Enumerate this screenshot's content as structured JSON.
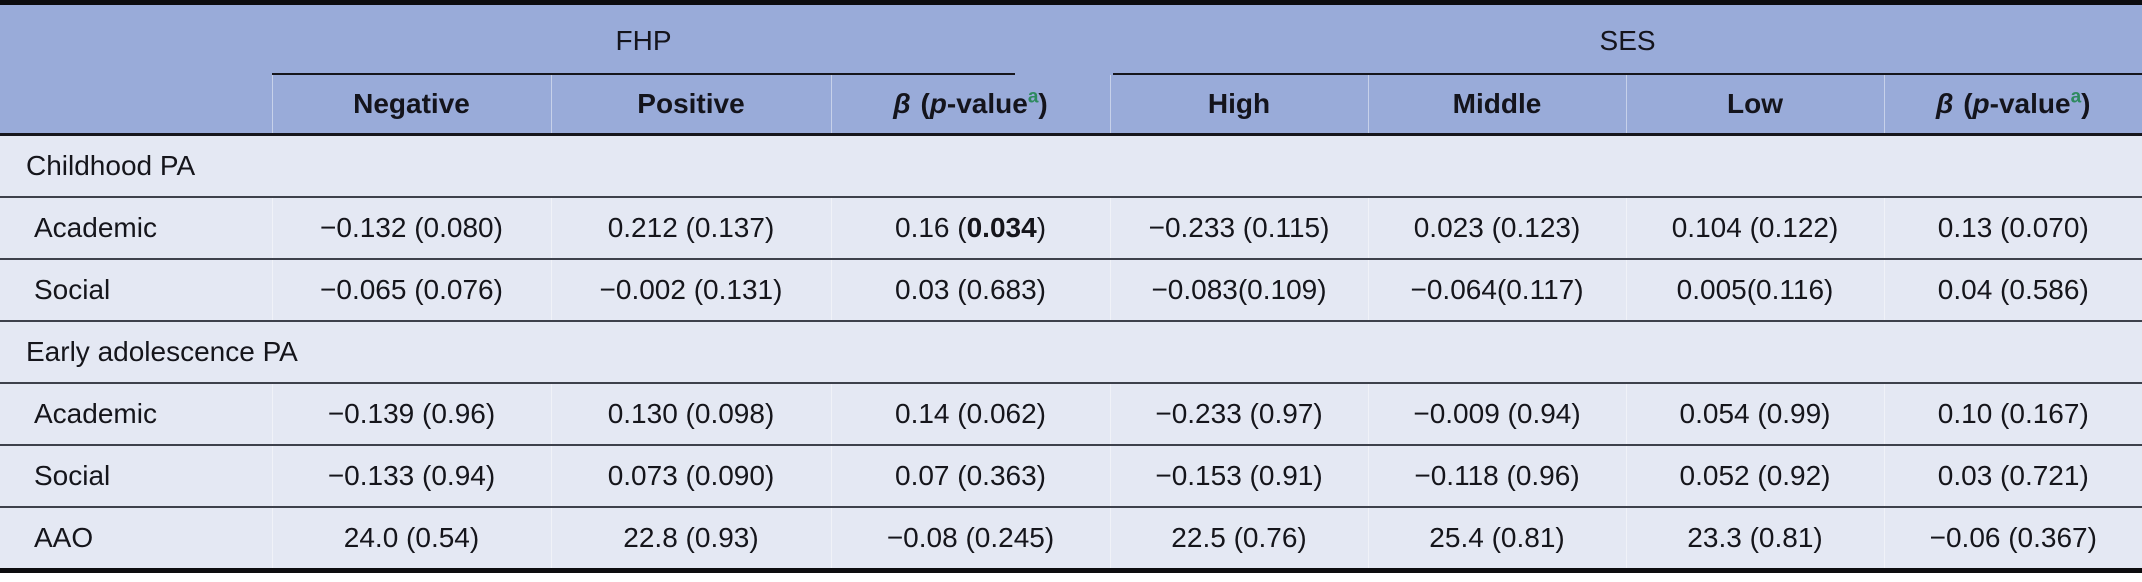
{
  "colors": {
    "header_bg": "#99abd9",
    "body_bg": "#e4e8f3",
    "footnote_marker_green": "#2e8a5f",
    "rule_dark": "#0c0c0f",
    "row_line": "#3d414b",
    "text": "#15151b"
  },
  "table": {
    "groups": [
      {
        "label": "FHP",
        "span": 3
      },
      {
        "label": "SES",
        "span": 4
      }
    ],
    "columns": [
      {
        "kind": "plain",
        "label": "Negative"
      },
      {
        "kind": "plain",
        "label": "Positive"
      },
      {
        "kind": "beta",
        "beta": "β",
        "open": " (",
        "p": "p",
        "rest": "-value",
        "sup": "a",
        "close": ")"
      },
      {
        "kind": "plain",
        "label": "High"
      },
      {
        "kind": "plain",
        "label": "Middle"
      },
      {
        "kind": "plain",
        "label": "Low"
      },
      {
        "kind": "beta",
        "beta": "β",
        "open": " (",
        "p": "p",
        "rest": "-value",
        "sup": "a",
        "close": ")"
      }
    ],
    "rows": [
      {
        "type": "section",
        "label": "Childhood PA"
      },
      {
        "type": "data",
        "label": "Academic",
        "cells": [
          "−0.132 (0.080)",
          "0.212 (0.137)",
          {
            "pre": "0.16 (",
            "bold": "0.034",
            "post": ")"
          },
          "−0.233 (0.115)",
          "0.023 (0.123)",
          "0.104 (0.122)",
          "0.13 (0.070)"
        ]
      },
      {
        "type": "data",
        "label": "Social",
        "cells": [
          "−0.065 (0.076)",
          "−0.002 (0.131)",
          "0.03 (0.683)",
          "−0.083(0.109)",
          "−0.064(0.117)",
          "0.005(0.116)",
          "0.04 (0.586)"
        ]
      },
      {
        "type": "section",
        "label": "Early adolescence PA"
      },
      {
        "type": "data",
        "label": "Academic",
        "cells": [
          "−0.139 (0.96)",
          "0.130 (0.098)",
          "0.14 (0.062)",
          "−0.233 (0.97)",
          "−0.009 (0.94)",
          "0.054 (0.99)",
          "0.10 (0.167)"
        ]
      },
      {
        "type": "data",
        "label": "Social",
        "cells": [
          "−0.133 (0.94)",
          "0.073 (0.090)",
          "0.07 (0.363)",
          "−0.153 (0.91)",
          "−0.118 (0.96)",
          "0.052 (0.92)",
          "0.03 (0.721)"
        ]
      },
      {
        "type": "data",
        "label": "AAO",
        "cells": [
          "24.0 (0.54)",
          "22.8 (0.93)",
          "−0.08 (0.245)",
          "22.5 (0.76)",
          "25.4 (0.81)",
          "23.3 (0.81)",
          "−0.06 (0.367)"
        ]
      }
    ]
  }
}
